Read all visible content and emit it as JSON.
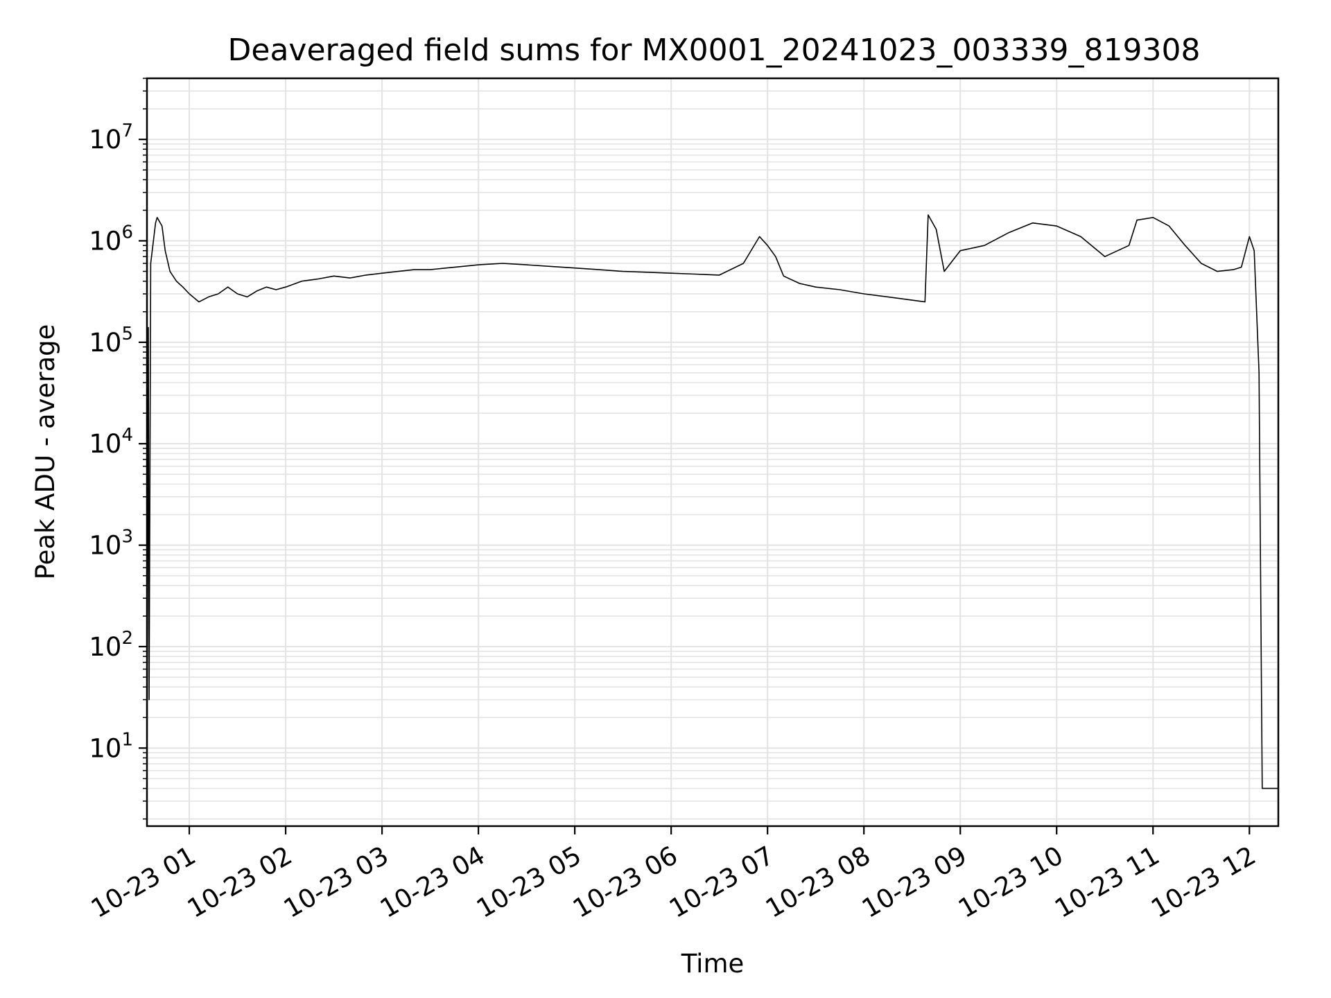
{
  "chart_data": {
    "type": "line",
    "title": "Deaveraged field sums for MX0001_20241023_003339_819308",
    "xlabel": "Time",
    "ylabel": "Peak ADU - average",
    "yscale": "log",
    "ylim": [
      1.7,
      40000000
    ],
    "xlim": [
      "2024-10-23T00:33:39",
      "2024-10-23T12:18:00"
    ],
    "grid": true,
    "line_color": "#000000",
    "grid_color": "#e3e3e3",
    "x_ticks": [
      {
        "t": "2024-10-23T01:00",
        "label": "10-23 01"
      },
      {
        "t": "2024-10-23T02:00",
        "label": "10-23 02"
      },
      {
        "t": "2024-10-23T03:00",
        "label": "10-23 03"
      },
      {
        "t": "2024-10-23T04:00",
        "label": "10-23 04"
      },
      {
        "t": "2024-10-23T05:00",
        "label": "10-23 05"
      },
      {
        "t": "2024-10-23T06:00",
        "label": "10-23 06"
      },
      {
        "t": "2024-10-23T07:00",
        "label": "10-23 07"
      },
      {
        "t": "2024-10-23T08:00",
        "label": "10-23 08"
      },
      {
        "t": "2024-10-23T09:00",
        "label": "10-23 09"
      },
      {
        "t": "2024-10-23T10:00",
        "label": "10-23 10"
      },
      {
        "t": "2024-10-23T11:00",
        "label": "10-23 11"
      },
      {
        "t": "2024-10-23T12:00",
        "label": "10-23 12"
      }
    ],
    "y_ticks": [
      {
        "value": 10,
        "base": "10",
        "exp": "1"
      },
      {
        "value": 100,
        "base": "10",
        "exp": "2"
      },
      {
        "value": 1000,
        "base": "10",
        "exp": "3"
      },
      {
        "value": 10000,
        "base": "10",
        "exp": "4"
      },
      {
        "value": 100000,
        "base": "10",
        "exp": "5"
      },
      {
        "value": 1000000,
        "base": "10",
        "exp": "6"
      },
      {
        "value": 10000000,
        "base": "10",
        "exp": "7"
      }
    ],
    "series": [
      {
        "x": [
          "2024-10-23T00:33:39",
          "2024-10-23T00:34:30",
          "2024-10-23T00:35:00",
          "2024-10-23T00:36:00",
          "2024-10-23T00:39:00",
          "2024-10-23T00:40:00",
          "2024-10-23T00:43:00",
          "2024-10-23T00:45:00",
          "2024-10-23T00:48:00",
          "2024-10-23T00:52:00",
          "2024-10-23T00:56:00",
          "2024-10-23T01:00:00",
          "2024-10-23T01:06:00",
          "2024-10-23T01:12:00",
          "2024-10-23T01:18:00",
          "2024-10-23T01:24:00",
          "2024-10-23T01:30:00",
          "2024-10-23T01:36:00",
          "2024-10-23T01:42:00",
          "2024-10-23T01:48:00",
          "2024-10-23T01:54:00",
          "2024-10-23T02:00:00",
          "2024-10-23T02:10:00",
          "2024-10-23T02:20:00",
          "2024-10-23T02:30:00",
          "2024-10-23T02:40:00",
          "2024-10-23T02:50:00",
          "2024-10-23T03:00:00",
          "2024-10-23T03:10:00",
          "2024-10-23T03:20:00",
          "2024-10-23T03:30:00",
          "2024-10-23T03:40:00",
          "2024-10-23T03:50:00",
          "2024-10-23T04:00:00",
          "2024-10-23T04:15:00",
          "2024-10-23T04:30:00",
          "2024-10-23T04:45:00",
          "2024-10-23T05:00:00",
          "2024-10-23T05:15:00",
          "2024-10-23T05:30:00",
          "2024-10-23T05:45:00",
          "2024-10-23T06:00:00",
          "2024-10-23T06:15:00",
          "2024-10-23T06:30:00",
          "2024-10-23T06:45:00",
          "2024-10-23T06:55:00",
          "2024-10-23T07:00:00",
          "2024-10-23T07:05:00",
          "2024-10-23T07:10:00",
          "2024-10-23T07:20:00",
          "2024-10-23T07:30:00",
          "2024-10-23T07:45:00",
          "2024-10-23T08:00:00",
          "2024-10-23T08:15:00",
          "2024-10-23T08:30:00",
          "2024-10-23T08:38:00",
          "2024-10-23T08:40:00",
          "2024-10-23T08:45:00",
          "2024-10-23T08:50:00",
          "2024-10-23T09:00:00",
          "2024-10-23T09:15:00",
          "2024-10-23T09:30:00",
          "2024-10-23T09:45:00",
          "2024-10-23T10:00:00",
          "2024-10-23T10:15:00",
          "2024-10-23T10:30:00",
          "2024-10-23T10:45:00",
          "2024-10-23T10:50:00",
          "2024-10-23T11:00:00",
          "2024-10-23T11:10:00",
          "2024-10-23T11:20:00",
          "2024-10-23T11:30:00",
          "2024-10-23T11:40:00",
          "2024-10-23T11:50:00",
          "2024-10-23T11:55:00",
          "2024-10-23T12:00:00",
          "2024-10-23T12:03:00",
          "2024-10-23T12:06:00",
          "2024-10-23T12:08:00",
          "2024-10-23T12:18:00"
        ],
        "y": [
          2,
          140000,
          30,
          600000,
          1500000,
          1700000,
          1400000,
          800000,
          500000,
          400000,
          350000,
          300000,
          250000,
          280000,
          300000,
          350000,
          300000,
          280000,
          320000,
          350000,
          330000,
          350000,
          400000,
          420000,
          450000,
          430000,
          460000,
          480000,
          500000,
          520000,
          520000,
          540000,
          560000,
          580000,
          600000,
          580000,
          560000,
          540000,
          520000,
          500000,
          490000,
          480000,
          470000,
          460000,
          600000,
          1100000,
          900000,
          700000,
          450000,
          380000,
          350000,
          330000,
          300000,
          280000,
          260000,
          250000,
          1800000,
          1300000,
          500000,
          800000,
          900000,
          1200000,
          1500000,
          1400000,
          1100000,
          700000,
          900000,
          1600000,
          1700000,
          1400000,
          900000,
          600000,
          500000,
          520000,
          550000,
          1100000,
          800000,
          50000,
          4,
          4
        ]
      }
    ]
  }
}
